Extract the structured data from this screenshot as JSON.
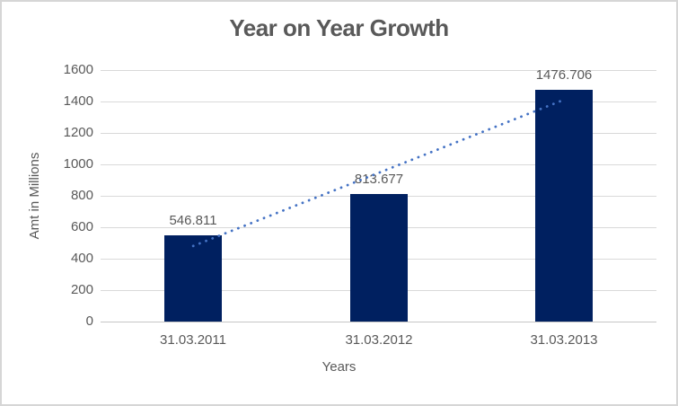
{
  "window": {
    "background": "#FFFFFF",
    "border_color": "#D6D6D6"
  },
  "chart_data": {
    "type": "bar",
    "title": "Year on Year Growth",
    "categories": [
      "31.03.2011",
      "31.03.2012",
      "31.03.2013"
    ],
    "values": [
      546.811,
      813.677,
      1476.706
    ],
    "data_labels": [
      "546.811",
      "813.677",
      "1476.706"
    ],
    "xlabel": "Years",
    "ylabel": "Amt in Millions",
    "ylim": [
      0,
      1600
    ],
    "ytick_step": 200,
    "yticks": [
      0,
      200,
      400,
      600,
      800,
      1000,
      1200,
      1400,
      1600
    ],
    "grid": true,
    "legend": "none",
    "bar_color": "#002060",
    "title_color": "#595959",
    "axis_text_color": "#595959",
    "gridline_color": "#D9D9D9",
    "axis_line_color": "#C6C6C6",
    "trendline": {
      "type": "linear",
      "style": "dotted",
      "color": "#4472C4",
      "fitted_values": [
        480.81,
        945.73,
        1410.65
      ]
    }
  }
}
